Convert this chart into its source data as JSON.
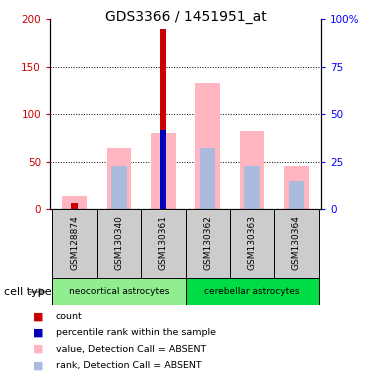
{
  "title": "GDS3366 / 1451951_at",
  "samples": [
    "GSM128874",
    "GSM130340",
    "GSM130361",
    "GSM130362",
    "GSM130363",
    "GSM130364"
  ],
  "neo_group": [
    0,
    1,
    2
  ],
  "cer_group": [
    3,
    4,
    5
  ],
  "neo_label": "neocortical astrocytes",
  "cer_label": "cerebellar astrocytes",
  "neo_color": "#90EE90",
  "cer_color": "#00DD44",
  "count_values": [
    7,
    0,
    190,
    0,
    0,
    0
  ],
  "count_color": "#CC0000",
  "percentile_values": [
    0,
    0,
    83,
    0,
    0,
    0
  ],
  "percentile_color": "#0000BB",
  "value_absent": [
    14,
    65,
    80,
    133,
    82,
    46
  ],
  "value_absent_color": "#FFB6C1",
  "rank_absent": [
    0,
    46,
    0,
    65,
    46,
    30
  ],
  "rank_absent_color": "#AABBDD",
  "ylim_left": [
    0,
    200
  ],
  "ylim_right": [
    0,
    100
  ],
  "left_ticks": [
    0,
    50,
    100,
    150,
    200
  ],
  "right_ticks": [
    0,
    25,
    50,
    75,
    100
  ],
  "left_tick_labels": [
    "0",
    "50",
    "100",
    "150",
    "200"
  ],
  "right_tick_labels": [
    "0",
    "25",
    "50",
    "75",
    "100%"
  ],
  "box_color": "#CCCCCC",
  "legend_items": [
    {
      "label": "count",
      "color": "#CC0000"
    },
    {
      "label": "percentile rank within the sample",
      "color": "#0000BB"
    },
    {
      "label": "value, Detection Call = ABSENT",
      "color": "#FFB6C1"
    },
    {
      "label": "rank, Detection Call = ABSENT",
      "color": "#AABBDD"
    }
  ]
}
